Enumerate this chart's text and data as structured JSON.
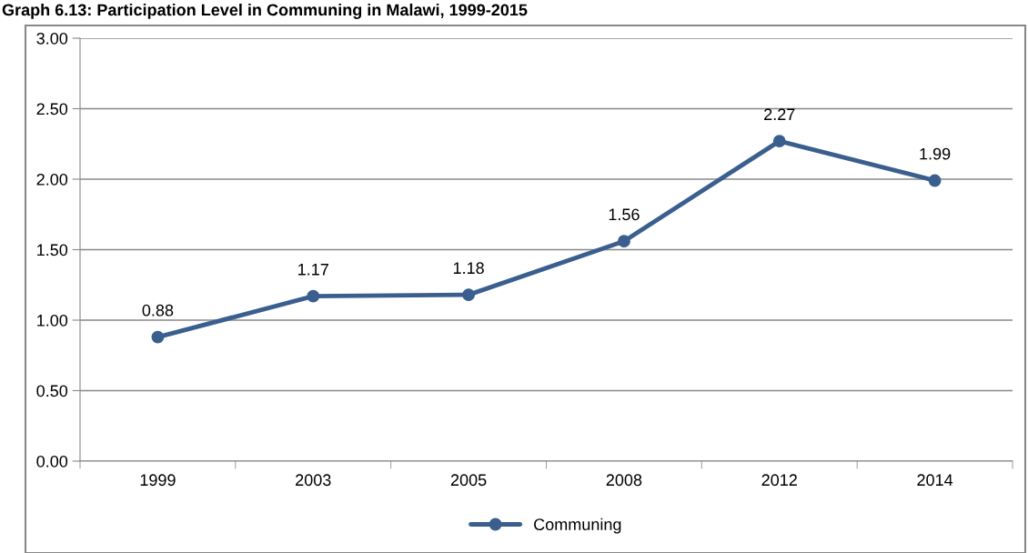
{
  "chart_data": {
    "type": "line",
    "title": "Graph 6.13: Participation Level in Communing in Malawi, 1999-2015",
    "categories": [
      "1999",
      "2003",
      "2005",
      "2008",
      "2012",
      "2014"
    ],
    "series": [
      {
        "name": "Communing",
        "color": "#3a5f8f",
        "values": [
          0.88,
          1.17,
          1.18,
          1.56,
          2.27,
          1.99
        ]
      }
    ],
    "ylim": [
      0,
      3
    ],
    "yticks": [
      {
        "value": 0,
        "label": "0.00"
      },
      {
        "value": 0.5,
        "label": "0.50"
      },
      {
        "value": 1,
        "label": "1.00"
      },
      {
        "value": 1.5,
        "label": "1.50"
      },
      {
        "value": 2,
        "label": "2.00"
      },
      {
        "value": 2.5,
        "label": "2.50"
      },
      {
        "value": 3,
        "label": "3.00"
      }
    ],
    "grid": "y",
    "legend": "bottom",
    "marker": "circle",
    "line_style": "solid",
    "data_labels": true
  }
}
